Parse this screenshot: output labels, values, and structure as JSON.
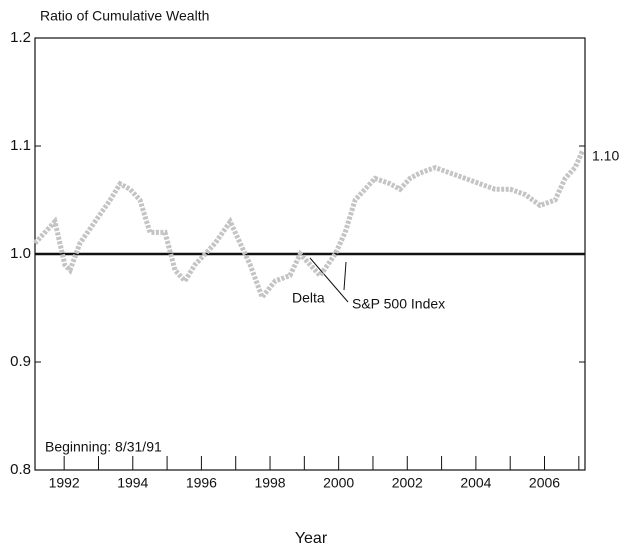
{
  "chart_data": {
    "type": "line",
    "y_axis_label": "Ratio of Cumulative Wealth",
    "x_axis_label": "Year",
    "annotations": [
      "Beginning: 8/31/91",
      "Delta",
      "S&P 500 Index",
      "1.10"
    ],
    "xlim": [
      1991.15,
      2007.18
    ],
    "xticks": [
      1992,
      1994,
      1996,
      1998,
      2000,
      2002,
      2004,
      2006
    ],
    "x_minor_ticks": [
      1993,
      1995,
      1997,
      1999,
      2001,
      2003,
      2005,
      2007
    ],
    "ylim": [
      0.8,
      1.2
    ],
    "yticks": [
      {
        "value": 0.8,
        "label": "0.8"
      },
      {
        "value": 0.9,
        "label": "0.9"
      },
      {
        "value": 1.0,
        "label": "1.0"
      },
      {
        "value": 1.1,
        "label": "1.1"
      },
      {
        "value": 1.2,
        "label": "1.2"
      }
    ],
    "series": [
      {
        "name": "Delta",
        "color": "#c4c4c4",
        "x": [
          1991.15,
          1991.44,
          1991.73,
          1992.02,
          1992.17,
          1992.46,
          1992.9,
          1993.34,
          1993.63,
          1993.92,
          1994.21,
          1994.5,
          1994.94,
          1995.23,
          1995.52,
          1995.81,
          1996.11,
          1996.4,
          1996.84,
          1997.13,
          1997.42,
          1997.77,
          1998.15,
          1998.58,
          1998.88,
          1999.17,
          1999.46,
          1999.9,
          2000.19,
          2000.48,
          2000.77,
          2001.06,
          2001.5,
          2001.79,
          2002.08,
          2002.37,
          2002.81,
          2003.25,
          2003.69,
          2004.12,
          2004.56,
          2005.0,
          2005.44,
          2005.87,
          2006.31,
          2006.6,
          2006.89,
          2007.1
        ],
        "values": [
          1.01,
          1.02,
          1.03,
          0.99,
          0.985,
          1.01,
          1.03,
          1.05,
          1.065,
          1.06,
          1.05,
          1.02,
          1.02,
          0.985,
          0.975,
          0.99,
          1.0,
          1.01,
          1.03,
          1.01,
          0.99,
          0.96,
          0.975,
          0.98,
          1.0,
          0.99,
          0.98,
          1.0,
          1.02,
          1.05,
          1.06,
          1.07,
          1.065,
          1.06,
          1.07,
          1.075,
          1.08,
          1.075,
          1.07,
          1.065,
          1.06,
          1.06,
          1.055,
          1.045,
          1.05,
          1.07,
          1.08,
          1.095
        ]
      },
      {
        "name": "S&P 500 Index",
        "color": "#111111",
        "x": [
          1991.15,
          2007.18
        ],
        "values": [
          1.0,
          1.0
        ]
      }
    ]
  }
}
